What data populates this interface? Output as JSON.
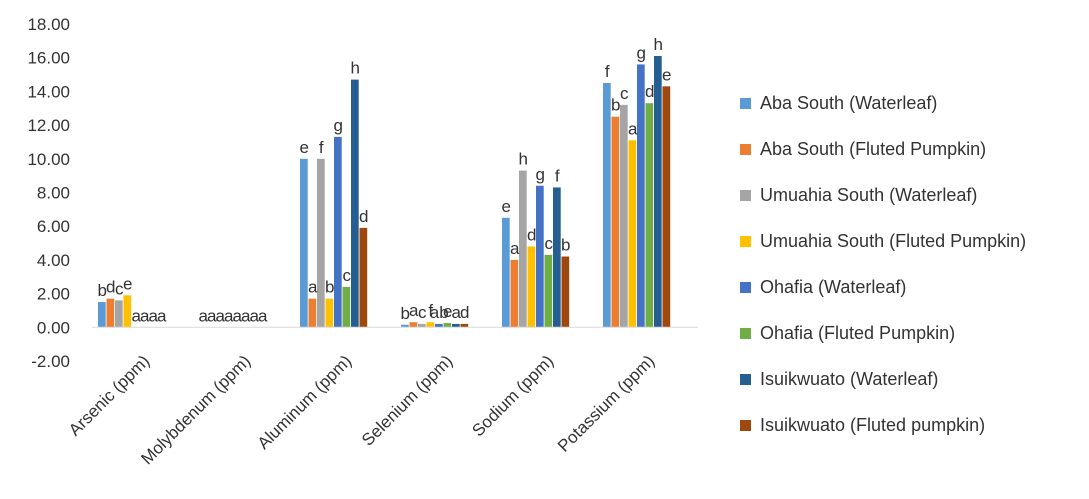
{
  "chart_data": {
    "type": "bar",
    "title": "",
    "xlabel": "",
    "ylabel": "",
    "ylim": [
      -2,
      18
    ],
    "yticks": [
      "-2.00",
      "0.00",
      "2.00",
      "4.00",
      "6.00",
      "8.00",
      "10.00",
      "12.00",
      "14.00",
      "16.00",
      "18.00"
    ],
    "grid": false,
    "legend_position": "right",
    "categories": [
      "Arsenic (ppm)",
      "Molybdenum (ppm)",
      "Aluminum (ppm)",
      "Selenium (ppm)",
      "Sodium (ppm)",
      "Potassium (ppm)"
    ],
    "series": [
      {
        "name": "Aba South (Waterleaf)",
        "color": "#5B9BD5",
        "values": [
          1.5,
          0,
          10.0,
          0.15,
          6.5,
          14.5
        ],
        "labels": [
          "b",
          "a",
          "e",
          "b",
          "e",
          "f"
        ]
      },
      {
        "name": "Aba South (Fluted Pumpkin)",
        "color": "#ED7D31",
        "values": [
          1.7,
          0,
          1.7,
          0.3,
          4.0,
          12.5
        ],
        "labels": [
          "d",
          "a",
          "a",
          "a",
          "a",
          "b"
        ]
      },
      {
        "name": "Umuahia South (Waterleaf)",
        "color": "#A5A5A5",
        "values": [
          1.6,
          0,
          10.0,
          0.2,
          9.3,
          13.2
        ],
        "labels": [
          "c",
          "a",
          "f",
          "c",
          "h",
          "c"
        ]
      },
      {
        "name": "Umuahia South (Fluted Pumpkin)",
        "color": "#FFC000",
        "values": [
          1.9,
          0,
          1.7,
          0.3,
          4.8,
          11.1
        ],
        "labels": [
          "e",
          "a",
          "b",
          "f",
          "d",
          "a"
        ]
      },
      {
        "name": "Ohafia (Waterleaf)",
        "color": "#4472C4",
        "values": [
          0,
          0,
          11.3,
          0.2,
          8.4,
          15.6
        ],
        "labels": [
          "a",
          "a",
          "g",
          "ab",
          "g",
          "g"
        ]
      },
      {
        "name": "Ohafia (Fluted Pumpkin)",
        "color": "#70AD47",
        "values": [
          0,
          0,
          2.4,
          0.25,
          4.3,
          13.3
        ],
        "labels": [
          "a",
          "a",
          "c",
          "e",
          "c",
          "d"
        ]
      },
      {
        "name": "Isuikwuato (Waterleaf)",
        "color": "#255E91",
        "values": [
          0,
          0,
          14.7,
          0.2,
          8.3,
          16.1
        ],
        "labels": [
          "a",
          "a",
          "h",
          "a",
          "f",
          "h"
        ]
      },
      {
        "name": "Isuikwuato (Fluted pumpkin)",
        "color": "#9E480E",
        "values": [
          0,
          0,
          5.9,
          0.2,
          4.2,
          14.3
        ],
        "labels": [
          "a",
          "a",
          "d",
          "d",
          "b",
          "e"
        ]
      }
    ]
  }
}
